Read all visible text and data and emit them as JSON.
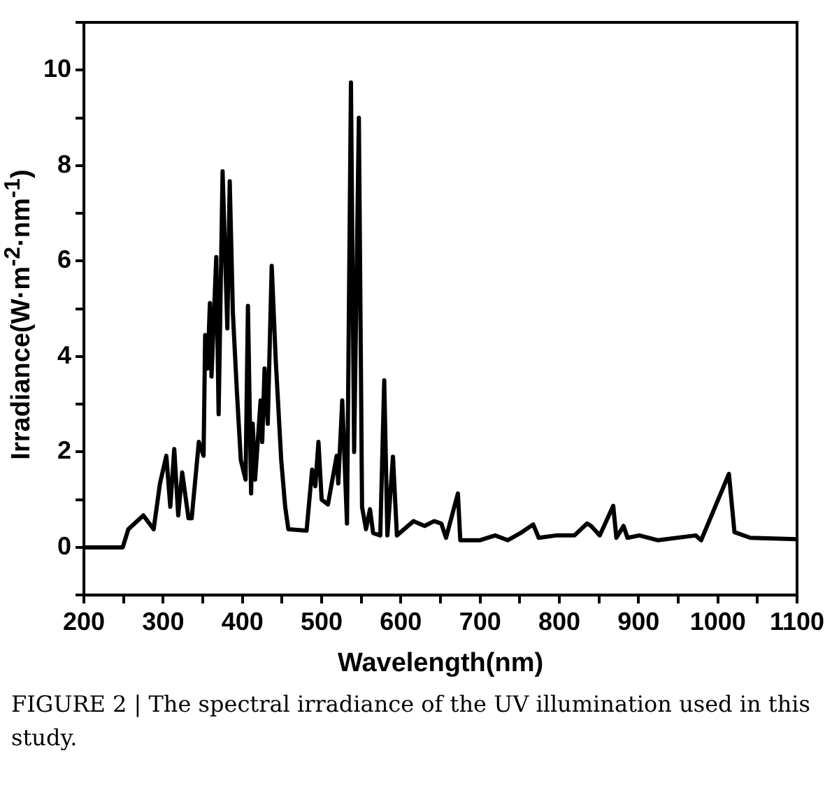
{
  "chart_data": {
    "type": "line",
    "xlabel": "Wavelength(nm)",
    "ylabel": "Irradiance(W·m$^{-2}$·nm$^{-1}$)",
    "annotations": [
      "FIGURE 2 | The spectral irradiance of the UV illumination used in this study."
    ],
    "xlim": [
      200,
      1100
    ],
    "ylim": [
      -1,
      11
    ],
    "xticks": [
      200,
      {
        "value": 250,
        "label": null
      },
      300,
      {
        "value": 350,
        "label": null
      },
      400,
      {
        "value": 450,
        "label": null
      },
      500,
      {
        "value": 550,
        "label": null
      },
      600,
      {
        "value": 650,
        "label": null
      },
      700,
      {
        "value": 750,
        "label": null
      },
      800,
      {
        "value": 850,
        "label": null
      },
      900,
      {
        "value": 950,
        "label": null
      },
      1000,
      {
        "value": 1050,
        "label": null
      },
      1100
    ],
    "yticks": [
      {
        "value": -1,
        "label": null
      },
      0,
      {
        "value": 1,
        "label": null
      },
      2,
      {
        "value": 3,
        "label": null
      },
      4,
      {
        "value": 5,
        "label": null
      },
      6,
      {
        "value": 7,
        "label": null
      },
      8,
      {
        "value": 9,
        "label": null
      },
      10,
      {
        "value": 11,
        "label": null
      }
    ],
    "marker": "none",
    "legend": false,
    "series": [
      {
        "color": "#000000",
        "x": [
          200,
          249,
          256,
          275,
          288,
          296,
          304,
          309,
          314,
          319,
          324,
          332,
          336,
          345,
          351,
          353,
          356,
          359,
          361,
          367,
          370,
          375,
          381,
          384,
          388,
          393,
          398,
          404,
          407,
          411,
          413,
          416,
          423,
          425,
          428,
          432,
          437,
          442,
          449,
          454,
          458,
          481,
          488,
          492,
          496,
          500,
          508,
          519,
          521,
          526,
          532,
          537,
          541,
          547,
          551,
          556,
          561,
          565,
          574,
          579,
          583,
          590,
          595,
          616,
          630,
          642,
          651,
          657,
          672,
          675,
          700,
          719,
          735,
          751,
          767,
          774,
          796,
          819,
          835,
          840,
          851,
          868,
          872,
          881,
          886,
          901,
          924,
          972,
          979,
          1014,
          1021,
          1041,
          1100
        ],
        "values": [
          0,
          0,
          0.38,
          0.67,
          0.38,
          1.34,
          1.92,
          0.85,
          2.06,
          0.67,
          1.57,
          0.61,
          0.61,
          2.21,
          1.92,
          4.45,
          3.75,
          5.12,
          3.58,
          6.08,
          2.79,
          7.88,
          4.59,
          7.67,
          4.91,
          3.28,
          1.83,
          1.42,
          5.06,
          1.13,
          2.59,
          1.42,
          3.08,
          2.21,
          3.75,
          2.59,
          5.9,
          3.95,
          1.83,
          0.85,
          0.38,
          0.35,
          1.63,
          1.28,
          2.21,
          1.0,
          0.9,
          1.92,
          1.34,
          3.08,
          0.5,
          9.74,
          2.0,
          9.0,
          0.85,
          0.38,
          0.8,
          0.3,
          0.25,
          3.5,
          0.25,
          1.9,
          0.25,
          0.55,
          0.45,
          0.55,
          0.5,
          0.2,
          1.13,
          0.15,
          0.15,
          0.25,
          0.15,
          0.3,
          0.48,
          0.2,
          0.25,
          0.25,
          0.5,
          0.45,
          0.25,
          0.87,
          0.2,
          0.45,
          0.2,
          0.25,
          0.15,
          0.25,
          0.15,
          1.54,
          0.32,
          0.2,
          0.17
        ]
      }
    ]
  }
}
